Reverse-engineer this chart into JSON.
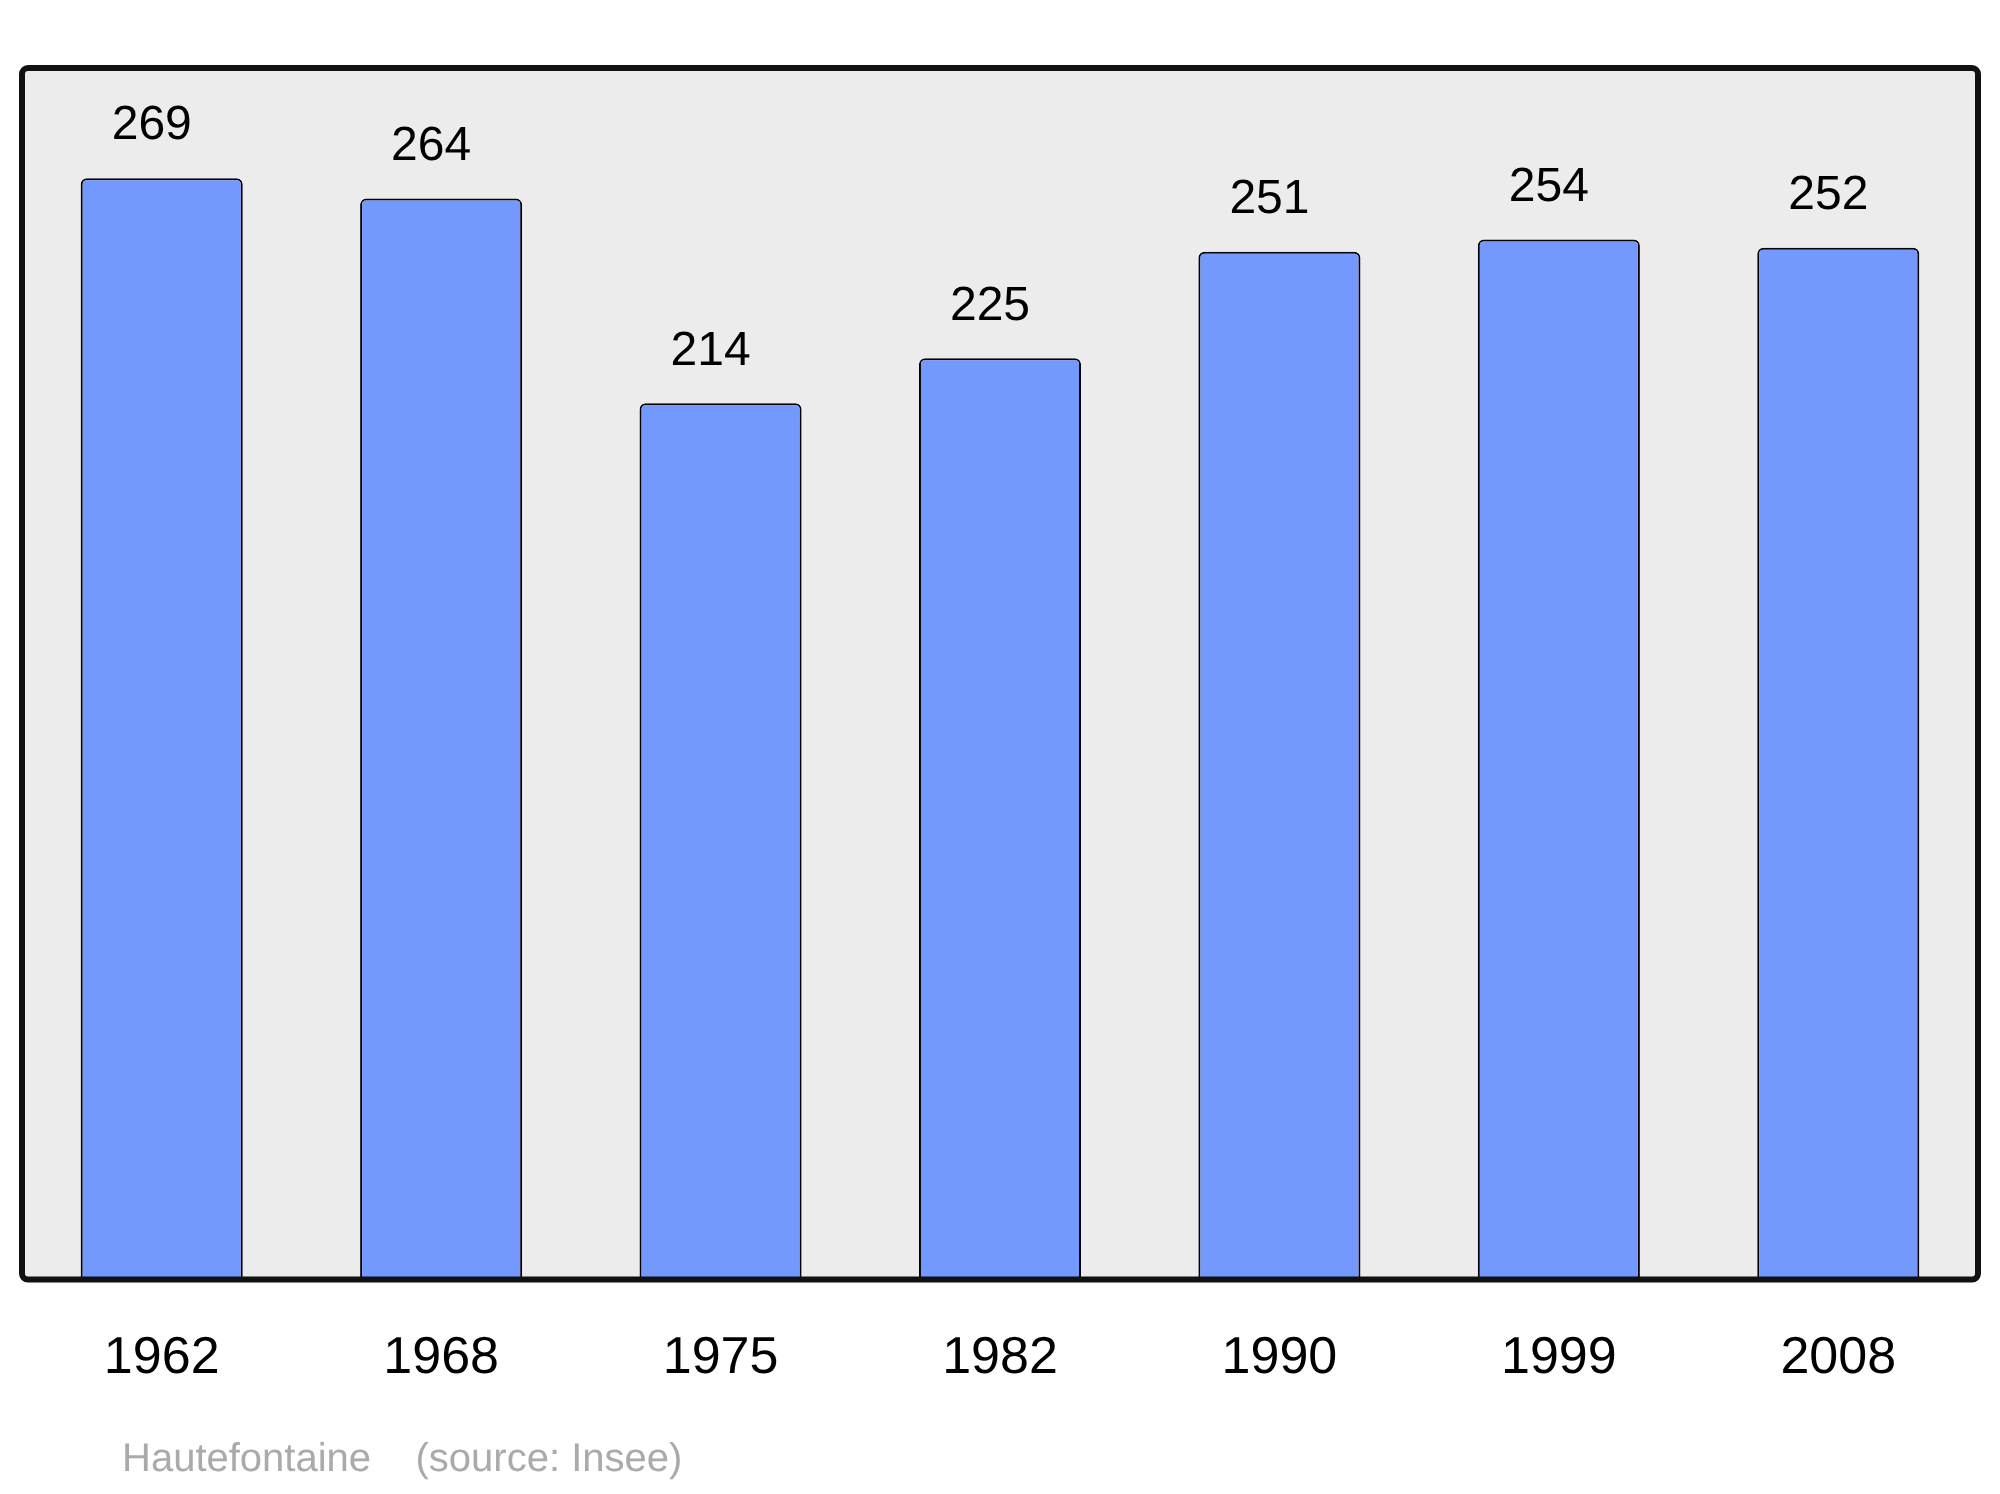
{
  "chart_data": {
    "type": "bar",
    "categories": [
      "1962",
      "1968",
      "1975",
      "1982",
      "1990",
      "1999",
      "2008"
    ],
    "values": [
      269,
      264,
      214,
      225,
      251,
      254,
      252
    ],
    "color": "#7399ff",
    "data_labels": true,
    "annotations": [
      "Hautefontaine    (source: Insee)"
    ]
  }
}
